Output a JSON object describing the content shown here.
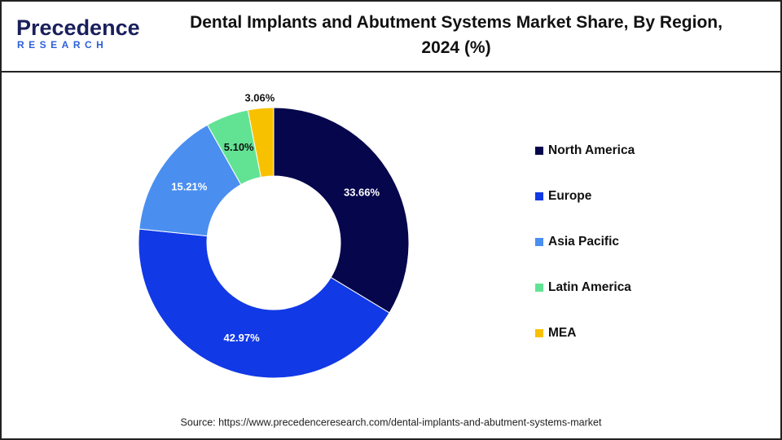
{
  "logo": {
    "name": "Precedence",
    "tagline": "RESEARCH"
  },
  "chart_data": {
    "type": "donut",
    "title": "Dental Implants and Abutment Systems Market Share, By Region, 2024 (%)",
    "categories": [
      "North America",
      "Europe",
      "Asia Pacific",
      "Latin America",
      "MEA"
    ],
    "values": [
      33.66,
      42.97,
      15.21,
      5.1,
      3.06
    ],
    "value_labels": [
      "33.66%",
      "42.97%",
      "15.21%",
      "5.10%",
      "3.06%"
    ],
    "colors": [
      "#06064d",
      "#1239e6",
      "#4a8ef0",
      "#62e394",
      "#f8c100"
    ],
    "legend": "right"
  },
  "source": "Source: https://www.precedenceresearch.com/dental-implants-and-abutment-systems-market"
}
